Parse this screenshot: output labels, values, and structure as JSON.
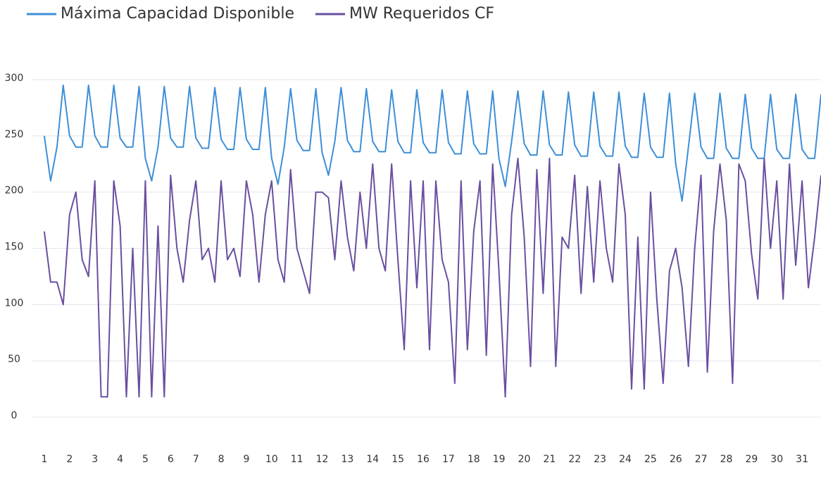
{
  "chart_data": {
    "type": "line",
    "x": [
      1,
      1.25,
      1.5,
      1.75,
      2,
      2.25,
      2.5,
      2.75,
      3,
      3.25,
      3.5,
      3.75,
      4,
      4.25,
      4.5,
      4.75,
      5,
      5.25,
      5.5,
      5.75,
      6,
      6.25,
      6.5,
      6.75,
      7,
      7.25,
      7.5,
      7.75,
      8,
      8.25,
      8.5,
      8.75,
      9,
      9.25,
      9.5,
      9.75,
      10,
      10.25,
      10.5,
      10.75,
      11,
      11.25,
      11.5,
      11.75,
      12,
      12.25,
      12.5,
      12.75,
      13,
      13.25,
      13.5,
      13.75,
      14,
      14.25,
      14.5,
      14.75,
      15,
      15.25,
      15.5,
      15.75,
      16,
      16.25,
      16.5,
      16.75,
      17,
      17.25,
      17.5,
      17.75,
      18,
      18.25,
      18.5,
      18.75,
      19,
      19.25,
      19.5,
      19.75,
      20,
      20.25,
      20.5,
      20.75,
      21,
      21.25,
      21.5,
      21.75,
      22,
      22.25,
      22.5,
      22.75,
      23,
      23.25,
      23.5,
      23.75,
      24,
      24.25,
      24.5,
      24.75,
      25,
      25.25,
      25.5,
      25.75,
      26,
      26.25,
      26.5,
      26.75,
      27,
      27.25,
      27.5,
      27.75,
      28,
      28.25,
      28.5,
      28.75,
      29,
      29.25,
      29.5,
      29.75,
      30,
      30.25,
      30.5,
      30.75,
      31,
      31.25,
      31.5,
      31.75
    ],
    "series": [
      {
        "name": "Máxima Capacidad Disponible",
        "color": "#3d8fd8",
        "values": [
          250,
          210,
          240,
          295,
          250,
          240,
          240,
          295,
          250,
          240,
          240,
          295,
          248,
          240,
          240,
          294,
          230,
          210,
          240,
          294,
          248,
          240,
          240,
          294,
          248,
          239,
          239,
          293,
          247,
          238,
          238,
          293,
          247,
          238,
          238,
          293,
          230,
          207,
          240,
          292,
          246,
          237,
          237,
          292,
          235,
          215,
          245,
          293,
          246,
          236,
          236,
          292,
          245,
          236,
          236,
          291,
          245,
          235,
          235,
          291,
          244,
          235,
          235,
          291,
          244,
          234,
          234,
          290,
          243,
          234,
          234,
          290,
          230,
          205,
          245,
          290,
          243,
          233,
          233,
          290,
          242,
          233,
          233,
          289,
          242,
          232,
          232,
          289,
          241,
          232,
          232,
          289,
          241,
          231,
          231,
          288,
          240,
          231,
          231,
          288,
          225,
          192,
          240,
          288,
          240,
          230,
          230,
          288,
          239,
          230,
          230,
          287,
          239,
          230,
          230,
          287,
          238,
          230,
          230,
          287,
          238,
          230,
          230,
          287
        ]
      },
      {
        "name": "MW Requeridos CF",
        "color": "#6a4fa0",
        "values": [
          165,
          120,
          120,
          100,
          180,
          200,
          140,
          125,
          210,
          18,
          18,
          210,
          170,
          18,
          150,
          18,
          210,
          18,
          170,
          18,
          215,
          150,
          120,
          175,
          210,
          140,
          150,
          120,
          210,
          140,
          150,
          125,
          210,
          180,
          120,
          180,
          210,
          140,
          120,
          220,
          150,
          130,
          110,
          200,
          200,
          195,
          140,
          210,
          160,
          130,
          200,
          150,
          225,
          150,
          130,
          225,
          140,
          60,
          210,
          115,
          210,
          60,
          210,
          140,
          120,
          30,
          210,
          60,
          165,
          210,
          55,
          225,
          130,
          18,
          180,
          230,
          160,
          45,
          220,
          110,
          230,
          45,
          160,
          150,
          215,
          110,
          205,
          120,
          210,
          150,
          120,
          225,
          180,
          25,
          160,
          25,
          200,
          105,
          30,
          130,
          150,
          115,
          45,
          150,
          215,
          40,
          165,
          225,
          175,
          30,
          225,
          210,
          145,
          105,
          230,
          150,
          210,
          105,
          225,
          135,
          210,
          115,
          160,
          215
        ]
      }
    ],
    "xlim": [
      0.5,
      31.75
    ],
    "xticks": [
      1,
      2,
      3,
      4,
      5,
      6,
      7,
      8,
      9,
      10,
      11,
      12,
      13,
      14,
      15,
      16,
      17,
      18,
      19,
      20,
      21,
      22,
      23,
      24,
      25,
      26,
      27,
      28,
      29,
      30,
      31
    ],
    "ylim": [
      0,
      300
    ],
    "yticks": [
      0,
      50,
      100,
      150,
      200,
      250,
      300
    ],
    "grid": true,
    "legend": "top-left"
  }
}
